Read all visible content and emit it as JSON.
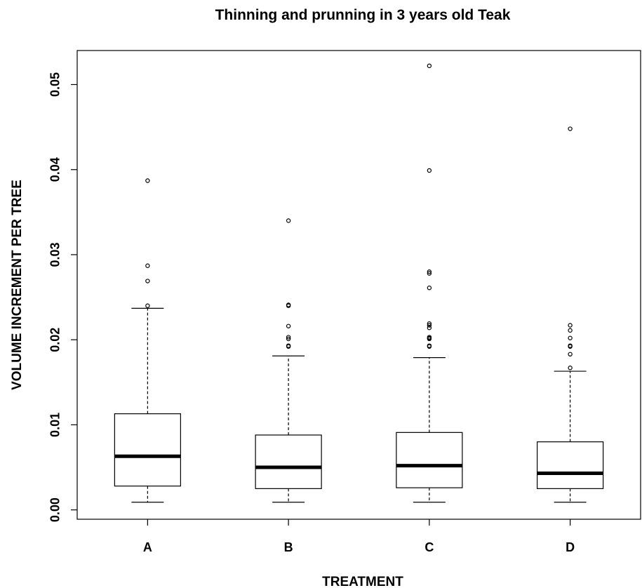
{
  "chart_data": {
    "type": "boxplot",
    "title": "Thinning and prunning in 3 years old Teak",
    "xlabel": "TREATMENT",
    "ylabel": "VOLUME INCREMENT PER TREE",
    "ylim": [
      -0.0011,
      0.054
    ],
    "yticks": [
      {
        "value": 0.0,
        "label": "0.00"
      },
      {
        "value": 0.01,
        "label": "0.01"
      },
      {
        "value": 0.02,
        "label": "0.02"
      },
      {
        "value": 0.03,
        "label": "0.03"
      },
      {
        "value": 0.04,
        "label": "0.04"
      },
      {
        "value": 0.05,
        "label": "0.05"
      }
    ],
    "grid": false,
    "categories": [
      "A",
      "B",
      "C",
      "D"
    ],
    "boxes": [
      {
        "category": "A",
        "whisker_low": 0.0009,
        "q1": 0.0028,
        "median": 0.0063,
        "q3": 0.0113,
        "whisker_high": 0.0237,
        "outliers": [
          0.024,
          0.0269,
          0.0287,
          0.0387
        ]
      },
      {
        "category": "B",
        "whisker_low": 0.0009,
        "q1": 0.0025,
        "median": 0.005,
        "q3": 0.0088,
        "whisker_high": 0.0181,
        "outliers": [
          0.0192,
          0.0193,
          0.0201,
          0.0203,
          0.0216,
          0.024,
          0.0241,
          0.034
        ]
      },
      {
        "category": "C",
        "whisker_low": 0.0009,
        "q1": 0.0026,
        "median": 0.0052,
        "q3": 0.0091,
        "whisker_high": 0.0179,
        "outliers": [
          0.0192,
          0.0193,
          0.0201,
          0.0202,
          0.0203,
          0.0214,
          0.0217,
          0.0219,
          0.0261,
          0.0278,
          0.028,
          0.0399,
          0.0522
        ]
      },
      {
        "category": "D",
        "whisker_low": 0.0009,
        "q1": 0.0025,
        "median": 0.0043,
        "q3": 0.008,
        "whisker_high": 0.0163,
        "outliers": [
          0.0167,
          0.0183,
          0.0192,
          0.0193,
          0.0202,
          0.0211,
          0.0217,
          0.0448
        ]
      }
    ]
  }
}
